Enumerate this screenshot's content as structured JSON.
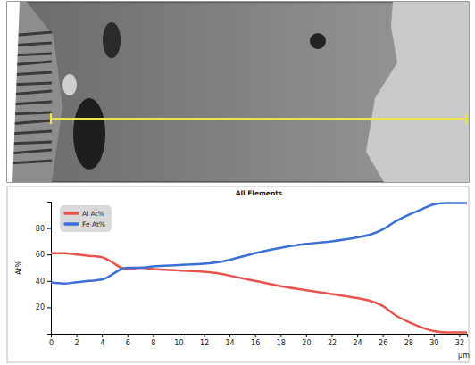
{
  "chart_data": {
    "type": "line",
    "title": "All Elements",
    "y_label": "At%",
    "x_label": "µm",
    "x": [
      0,
      1,
      2,
      3,
      4,
      5,
      5.5,
      6,
      7,
      8,
      10,
      12,
      13,
      14,
      16,
      18,
      20,
      22,
      24,
      25,
      26,
      27,
      28,
      29,
      30,
      31,
      32,
      32.6
    ],
    "series": [
      {
        "name": "Al At%",
        "color": "#e8534d",
        "values": [
          61,
          61,
          60,
          59,
          58,
          53,
          50,
          49,
          50,
          49,
          48,
          47,
          46,
          44,
          40,
          36,
          33,
          30,
          27,
          25,
          21,
          14,
          9,
          5,
          2,
          1,
          1,
          1
        ]
      },
      {
        "name": "Fe At%",
        "color": "#3b6fd6",
        "values": [
          39,
          38,
          39,
          40,
          41,
          46,
          49,
          50,
          50,
          51,
          52,
          53,
          54,
          56,
          61,
          65,
          68,
          70,
          73,
          75,
          79,
          85,
          90,
          94,
          98,
          99,
          99,
          99
        ]
      }
    ],
    "xlim": [
      0,
      32.6
    ],
    "ylim": [
      0,
      100
    ],
    "xticks": [
      0,
      2,
      4,
      6,
      8,
      10,
      12,
      14,
      16,
      18,
      20,
      22,
      24,
      26,
      28,
      30,
      32
    ],
    "yticks": [
      20,
      40,
      60,
      80
    ],
    "legend": "upper left",
    "grid": false
  }
}
